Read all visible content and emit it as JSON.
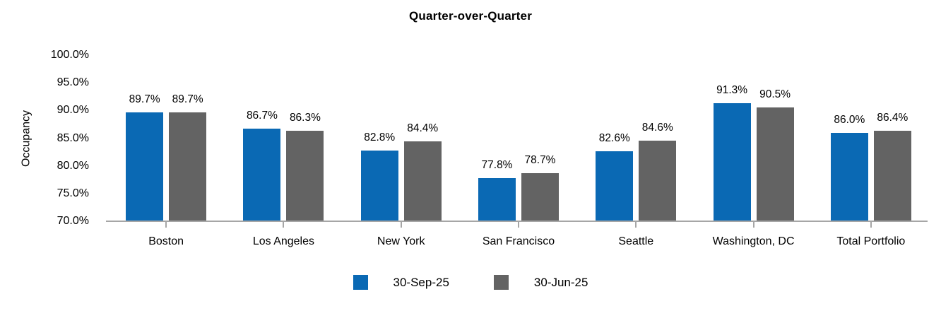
{
  "chart_data": {
    "type": "bar",
    "title": "Quarter-over-Quarter",
    "ylabel": "Occupancy",
    "xlabel": "",
    "categories": [
      "Boston",
      "Los Angeles",
      "New York",
      "San Francisco",
      "Seattle",
      "Washington, DC",
      "Total Portfolio"
    ],
    "series": [
      {
        "name": "30-Sep-25",
        "color": "#0A69B4",
        "values": [
          89.7,
          86.7,
          82.8,
          77.8,
          82.6,
          91.3,
          86.0
        ],
        "labels": [
          "89.7%",
          "86.7%",
          "82.8%",
          "77.8%",
          "82.6%",
          "91.3%",
          "86.0%"
        ]
      },
      {
        "name": "30-Jun-25",
        "color": "#636363",
        "values": [
          89.7,
          86.3,
          84.4,
          78.7,
          84.6,
          90.5,
          86.4
        ],
        "labels": [
          "89.7%",
          "86.3%",
          "84.4%",
          "78.7%",
          "84.6%",
          "90.5%",
          "86.4%"
        ]
      }
    ],
    "y_ticks": [
      "100.0%",
      "95.0%",
      "90.0%",
      "85.0%",
      "80.0%",
      "75.0%",
      "70.0%"
    ],
    "ylim": [
      70,
      100
    ],
    "grid": false,
    "legend_position": "bottom",
    "axis_color": "#A6A6A6",
    "text_color": "#000000",
    "background": "#FFFFFF"
  }
}
